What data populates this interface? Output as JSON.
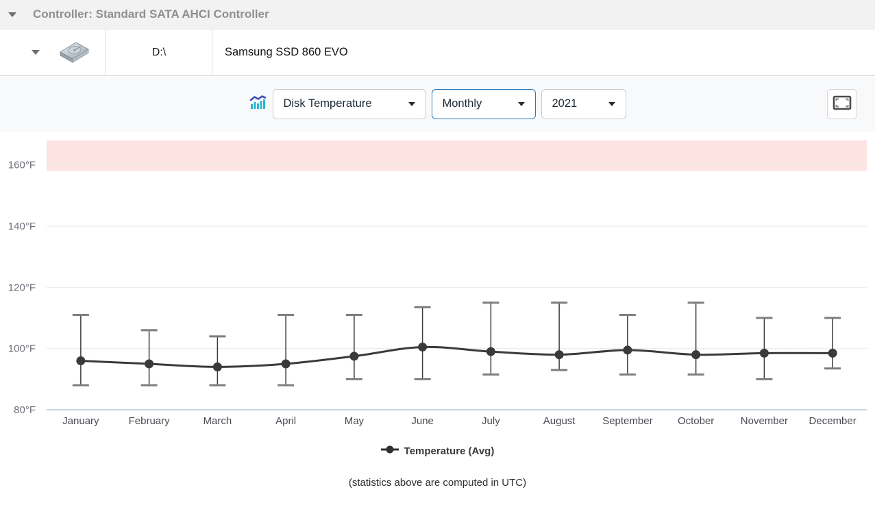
{
  "header": {
    "title": "Controller: Standard SATA AHCI Controller"
  },
  "disk_row": {
    "drive_letter": "D:\\",
    "model": "Samsung SSD 860 EVO"
  },
  "toolbar": {
    "metric_select": "Disk Temperature",
    "period_select": "Monthly",
    "year_select": "2021"
  },
  "icons": {
    "collapse": "chevron-down-icon",
    "disk": "hard-drive-icon",
    "chart_type": "bar-chart-trend-icon",
    "fullscreen": "fullscreen-icon",
    "legend_marker": "line-dot-marker-icon"
  },
  "colors": {
    "header_bg": "#f2f2f2",
    "toolbar_bg": "#f8f9fb",
    "active_select_border": "#2878b5",
    "chart_icon_bars": "#29b7d3",
    "chart_icon_line": "#3f51b5"
  },
  "footer_note": "(statistics above are computed in UTC)",
  "chart_data": {
    "type": "line",
    "title": "Disk Temperature, Monthly, 2021",
    "categories": [
      "January",
      "February",
      "March",
      "April",
      "May",
      "June",
      "July",
      "August",
      "September",
      "October",
      "November",
      "December"
    ],
    "series": [
      {
        "name": "Temperature (Avg)",
        "values": [
          96,
          95,
          94,
          95,
          97.5,
          100.5,
          99,
          98,
          99.5,
          98,
          98.5,
          98.5
        ],
        "min": [
          88,
          88,
          88,
          88,
          90,
          90,
          91.5,
          93,
          91.5,
          91.5,
          90,
          93.5
        ],
        "max": [
          111,
          106,
          104,
          111,
          111,
          113.5,
          115,
          115,
          111,
          115,
          110,
          110
        ]
      }
    ],
    "unit": "°F",
    "y_ticks": [
      80,
      100,
      120,
      140,
      160
    ],
    "ylim": [
      80,
      168
    ],
    "warning_zone": {
      "from": 158,
      "color": "#fde3e1"
    },
    "grid": true,
    "legend_position": "bottom",
    "series_color": "#3a3a3a",
    "cap_color": "#7d7d7d",
    "grid_color": "#e8eaee",
    "axis_line_color": "#c9d5e1",
    "tick_color": "#6e6e79",
    "category_color": "#4a4a54"
  }
}
